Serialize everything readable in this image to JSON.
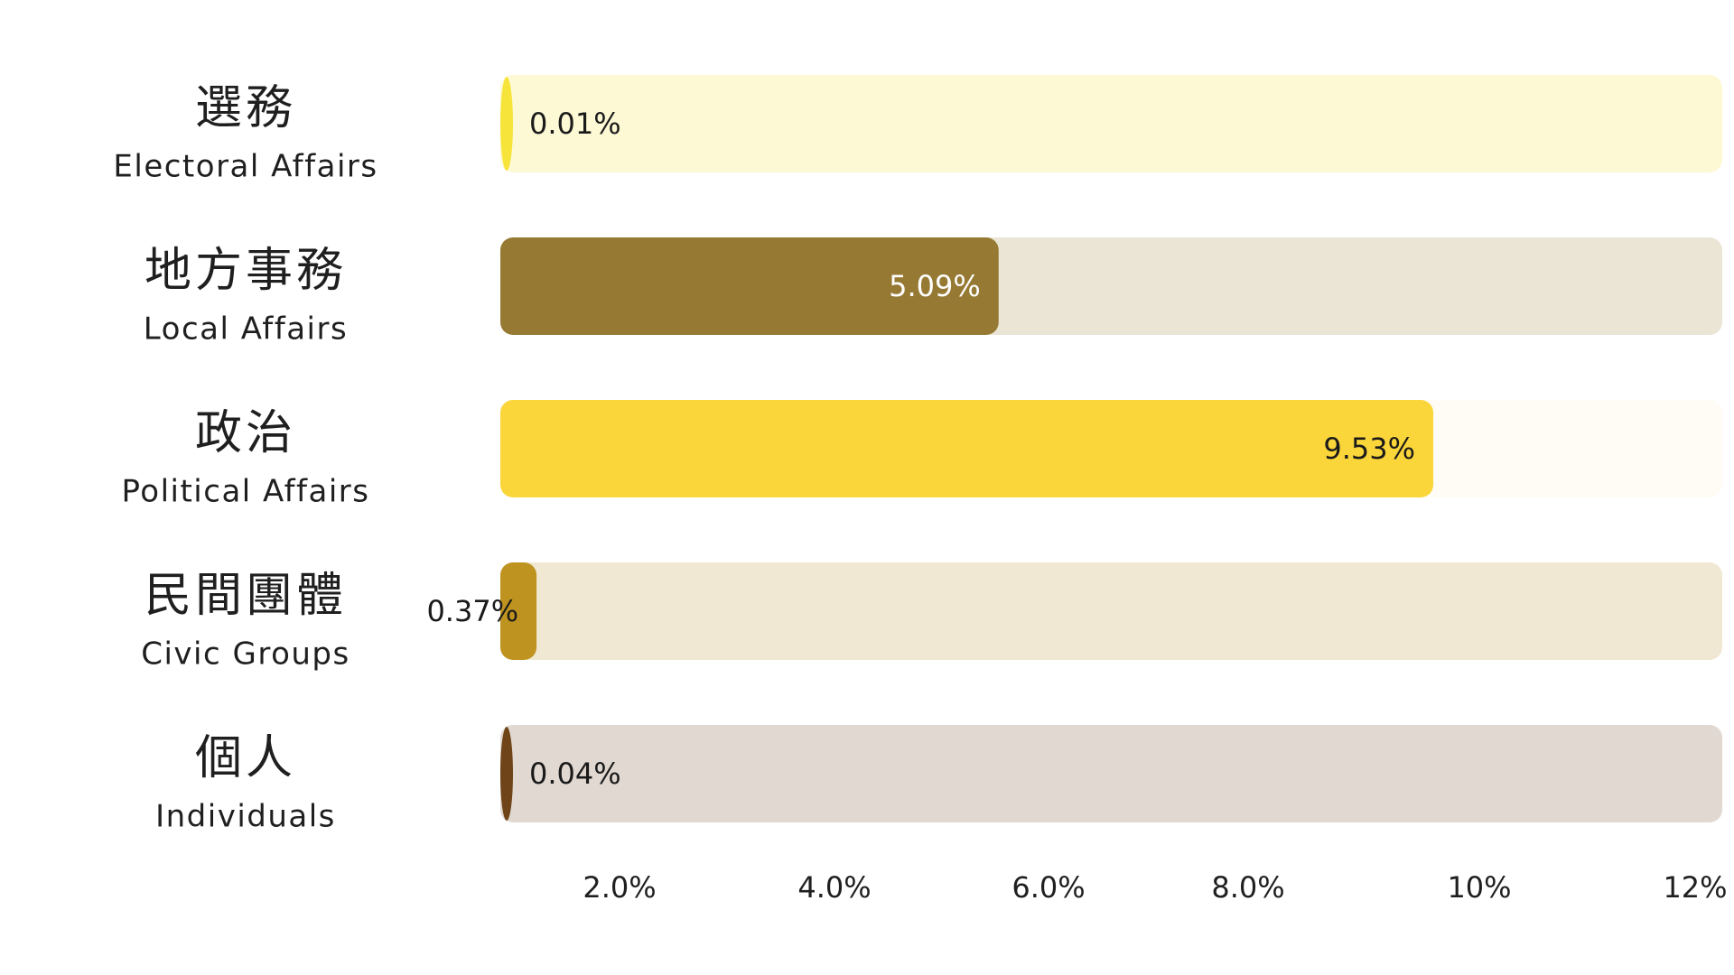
{
  "chart_data": {
    "type": "bar",
    "orientation": "horizontal",
    "categories": [
      {
        "zh": "選務",
        "en": "Electoral Affairs"
      },
      {
        "zh": "地方事務",
        "en": "Local Affairs"
      },
      {
        "zh": "政治",
        "en": "Political Affairs"
      },
      {
        "zh": "民間團體",
        "en": "Civic Groups"
      },
      {
        "zh": "個人",
        "en": "Individuals"
      }
    ],
    "values": [
      0.01,
      5.09,
      9.53,
      0.37,
      0.04
    ],
    "value_labels": [
      "0.01%",
      "5.09%",
      "9.53%",
      "0.37%",
      "0.04%"
    ],
    "bar_colors": [
      "#f7e43a",
      "#967a34",
      "#fbd63a",
      "#bf9320",
      "#6e4418"
    ],
    "track_colors": [
      "#fdf9d4",
      "#ebe5d5",
      "#fefcf4",
      "#f0e8d3",
      "#e0d8d1"
    ],
    "label_colors": [
      "#1a1a1a",
      "#ffffff",
      "#1a1a1a",
      "#1a1a1a",
      "#1a1a1a"
    ],
    "x_ticks": [
      {
        "value": 2,
        "label": "2.0%"
      },
      {
        "value": 4,
        "label": "4.0%"
      },
      {
        "value": 6,
        "label": "6.0%"
      },
      {
        "value": 8,
        "label": "8.0%"
      },
      {
        "value": 10,
        "label": "10%"
      },
      {
        "value": 12,
        "label": "12%"
      }
    ],
    "xlim": [
      0,
      12
    ],
    "grid": false,
    "legend": "none"
  }
}
